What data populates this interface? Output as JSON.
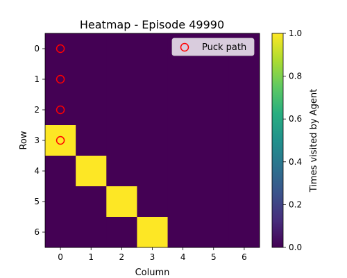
{
  "chart_data": {
    "type": "heatmap",
    "title": "Heatmap - Episode 49990",
    "xlabel": "Column",
    "ylabel": "Row",
    "x_ticks": [
      "0",
      "1",
      "2",
      "3",
      "4",
      "5",
      "6"
    ],
    "y_ticks": [
      "0",
      "1",
      "2",
      "3",
      "4",
      "5",
      "6"
    ],
    "values": [
      [
        0,
        0,
        0,
        0,
        0,
        0,
        0
      ],
      [
        0,
        0,
        0,
        0,
        0,
        0,
        0
      ],
      [
        0,
        0,
        0,
        0,
        0,
        0,
        0
      ],
      [
        1,
        0,
        0,
        0,
        0,
        0,
        0
      ],
      [
        0,
        1,
        0,
        0,
        0,
        0,
        0
      ],
      [
        0,
        0,
        1,
        0,
        0,
        0,
        0
      ],
      [
        0,
        0,
        0,
        1,
        0,
        0,
        0
      ]
    ],
    "colormap": "viridis",
    "vmin": 0,
    "vmax": 1,
    "colorbar": {
      "label": "Times visited by Agent",
      "ticks": [
        "0.0",
        "0.2",
        "0.4",
        "0.6",
        "0.8",
        "1.0"
      ]
    },
    "low_color": "#440154",
    "high_color": "#fde725",
    "overlay": {
      "name": "Puck path",
      "marker": "open-circle",
      "color": "#ff0000",
      "points": [
        {
          "row": 0,
          "col": 0
        },
        {
          "row": 1,
          "col": 0
        },
        {
          "row": 2,
          "col": 0
        },
        {
          "row": 3,
          "col": 0
        }
      ]
    },
    "legend_position": "top-right"
  }
}
